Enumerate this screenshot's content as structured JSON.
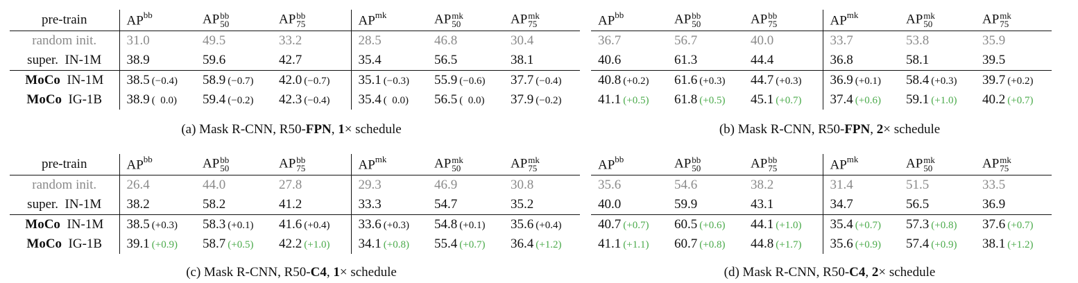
{
  "header_first": "pre-train",
  "headers": [
    {
      "base": "AP",
      "sup": "bb",
      "sub": ""
    },
    {
      "base": "AP",
      "sup": "bb",
      "sub": "50"
    },
    {
      "base": "AP",
      "sup": "bb",
      "sub": "75"
    },
    {
      "base": "AP",
      "sup": "mk",
      "sub": ""
    },
    {
      "base": "AP",
      "sup": "mk",
      "sub": "50"
    },
    {
      "base": "AP",
      "sup": "mk",
      "sub": "75"
    }
  ],
  "row_labels": [
    {
      "method": "",
      "data": "random init."
    },
    {
      "method": "super.",
      "data": "IN-1M"
    },
    {
      "method": "MoCo",
      "data": "IN-1M"
    },
    {
      "method": "MoCo",
      "data": "IG-1B"
    }
  ],
  "panels": [
    {
      "id": "a",
      "caption": {
        "pre": "(a) Mask R-CNN, R50-",
        "bold1": "FPN",
        "mid": ", ",
        "bold2": "1",
        "post": "× schedule"
      },
      "rows": [
        [
          {
            "v": "31.0"
          },
          {
            "v": "49.5"
          },
          {
            "v": "33.2"
          },
          {
            "v": "28.5"
          },
          {
            "v": "46.8"
          },
          {
            "v": "30.4"
          }
        ],
        [
          {
            "v": "38.9"
          },
          {
            "v": "59.6"
          },
          {
            "v": "42.7"
          },
          {
            "v": "35.4"
          },
          {
            "v": "56.5"
          },
          {
            "v": "38.1"
          }
        ],
        [
          {
            "v": "38.5",
            "d": "(−0.4)",
            "c": "neu"
          },
          {
            "v": "58.9",
            "d": "(−0.7)",
            "c": "neu"
          },
          {
            "v": "42.0",
            "d": "(−0.7)",
            "c": "neu"
          },
          {
            "v": "35.1",
            "d": "(−0.3)",
            "c": "neu"
          },
          {
            "v": "55.9",
            "d": "(−0.6)",
            "c": "neu"
          },
          {
            "v": "37.7",
            "d": "(−0.4)",
            "c": "neu"
          }
        ],
        [
          {
            "v": "38.9",
            "d": "(  0.0)",
            "c": "neu"
          },
          {
            "v": "59.4",
            "d": "(−0.2)",
            "c": "neu"
          },
          {
            "v": "42.3",
            "d": "(−0.4)",
            "c": "neu"
          },
          {
            "v": "35.4",
            "d": "(  0.0)",
            "c": "neu"
          },
          {
            "v": "56.5",
            "d": "(  0.0)",
            "c": "neu"
          },
          {
            "v": "37.9",
            "d": "(−0.2)",
            "c": "neu"
          }
        ]
      ]
    },
    {
      "id": "b",
      "caption": {
        "pre": "(b) Mask R-CNN, R50-",
        "bold1": "FPN",
        "mid": ", ",
        "bold2": "2",
        "post": "× schedule"
      },
      "rows": [
        [
          {
            "v": "36.7"
          },
          {
            "v": "56.7"
          },
          {
            "v": "40.0"
          },
          {
            "v": "33.7"
          },
          {
            "v": "53.8"
          },
          {
            "v": "35.9"
          }
        ],
        [
          {
            "v": "40.6"
          },
          {
            "v": "61.3"
          },
          {
            "v": "44.4"
          },
          {
            "v": "36.8"
          },
          {
            "v": "58.1"
          },
          {
            "v": "39.5"
          }
        ],
        [
          {
            "v": "40.8",
            "d": "(+0.2)",
            "c": "neu"
          },
          {
            "v": "61.6",
            "d": "(+0.3)",
            "c": "neu"
          },
          {
            "v": "44.7",
            "d": "(+0.3)",
            "c": "neu"
          },
          {
            "v": "36.9",
            "d": "(+0.1)",
            "c": "neu"
          },
          {
            "v": "58.4",
            "d": "(+0.3)",
            "c": "neu"
          },
          {
            "v": "39.7",
            "d": "(+0.2)",
            "c": "neu"
          }
        ],
        [
          {
            "v": "41.1",
            "d": "(+0.5)",
            "c": "pos"
          },
          {
            "v": "61.8",
            "d": "(+0.5)",
            "c": "pos"
          },
          {
            "v": "45.1",
            "d": "(+0.7)",
            "c": "pos"
          },
          {
            "v": "37.4",
            "d": "(+0.6)",
            "c": "pos"
          },
          {
            "v": "59.1",
            "d": "(+1.0)",
            "c": "pos"
          },
          {
            "v": "40.2",
            "d": "(+0.7)",
            "c": "pos"
          }
        ]
      ]
    },
    {
      "id": "c",
      "caption": {
        "pre": "(c) Mask R-CNN, R50-",
        "bold1": "C4",
        "mid": ", ",
        "bold2": "1",
        "post": "× schedule"
      },
      "rows": [
        [
          {
            "v": "26.4"
          },
          {
            "v": "44.0"
          },
          {
            "v": "27.8"
          },
          {
            "v": "29.3"
          },
          {
            "v": "46.9"
          },
          {
            "v": "30.8"
          }
        ],
        [
          {
            "v": "38.2"
          },
          {
            "v": "58.2"
          },
          {
            "v": "41.2"
          },
          {
            "v": "33.3"
          },
          {
            "v": "54.7"
          },
          {
            "v": "35.2"
          }
        ],
        [
          {
            "v": "38.5",
            "d": "(+0.3)",
            "c": "neu"
          },
          {
            "v": "58.3",
            "d": "(+0.1)",
            "c": "neu"
          },
          {
            "v": "41.6",
            "d": "(+0.4)",
            "c": "neu"
          },
          {
            "v": "33.6",
            "d": "(+0.3)",
            "c": "neu"
          },
          {
            "v": "54.8",
            "d": "(+0.1)",
            "c": "neu"
          },
          {
            "v": "35.6",
            "d": "(+0.4)",
            "c": "neu"
          }
        ],
        [
          {
            "v": "39.1",
            "d": "(+0.9)",
            "c": "pos"
          },
          {
            "v": "58.7",
            "d": "(+0.5)",
            "c": "pos"
          },
          {
            "v": "42.2",
            "d": "(+1.0)",
            "c": "pos"
          },
          {
            "v": "34.1",
            "d": "(+0.8)",
            "c": "pos"
          },
          {
            "v": "55.4",
            "d": "(+0.7)",
            "c": "pos"
          },
          {
            "v": "36.4",
            "d": "(+1.2)",
            "c": "pos"
          }
        ]
      ]
    },
    {
      "id": "d",
      "caption": {
        "pre": "(d) Mask R-CNN, R50-",
        "bold1": "C4",
        "mid": ", ",
        "bold2": "2",
        "post": "× schedule"
      },
      "rows": [
        [
          {
            "v": "35.6"
          },
          {
            "v": "54.6"
          },
          {
            "v": "38.2"
          },
          {
            "v": "31.4"
          },
          {
            "v": "51.5"
          },
          {
            "v": "33.5"
          }
        ],
        [
          {
            "v": "40.0"
          },
          {
            "v": "59.9"
          },
          {
            "v": "43.1"
          },
          {
            "v": "34.7"
          },
          {
            "v": "56.5"
          },
          {
            "v": "36.9"
          }
        ],
        [
          {
            "v": "40.7",
            "d": "(+0.7)",
            "c": "pos"
          },
          {
            "v": "60.5",
            "d": "(+0.6)",
            "c": "pos"
          },
          {
            "v": "44.1",
            "d": "(+1.0)",
            "c": "pos"
          },
          {
            "v": "35.4",
            "d": "(+0.7)",
            "c": "pos"
          },
          {
            "v": "57.3",
            "d": "(+0.8)",
            "c": "pos"
          },
          {
            "v": "37.6",
            "d": "(+0.7)",
            "c": "pos"
          }
        ],
        [
          {
            "v": "41.1",
            "d": "(+1.1)",
            "c": "pos"
          },
          {
            "v": "60.7",
            "d": "(+0.8)",
            "c": "pos"
          },
          {
            "v": "44.8",
            "d": "(+1.7)",
            "c": "pos"
          },
          {
            "v": "35.6",
            "d": "(+0.9)",
            "c": "pos"
          },
          {
            "v": "57.4",
            "d": "(+0.9)",
            "c": "pos"
          },
          {
            "v": "38.1",
            "d": "(+1.2)",
            "c": "pos"
          }
        ]
      ]
    }
  ]
}
